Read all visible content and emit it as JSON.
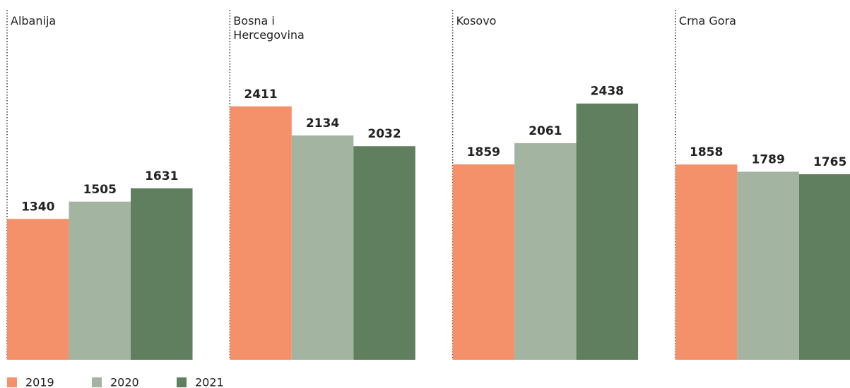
{
  "chart_data": {
    "type": "bar",
    "categories": [
      "Albanija",
      "Bosna i Hercegovina",
      "Kosovo",
      "Crna Gora"
    ],
    "series": [
      {
        "name": "2019",
        "color": "#f5916a",
        "values": [
          1340,
          2411,
          1859,
          1858
        ]
      },
      {
        "name": "2020",
        "color": "#a3b5a1",
        "values": [
          1505,
          2134,
          2061,
          1789
        ]
      },
      {
        "name": "2021",
        "color": "#5f7f5e",
        "values": [
          1631,
          2032,
          2438,
          1765
        ]
      }
    ],
    "ylim": [
      0,
      2500
    ]
  }
}
